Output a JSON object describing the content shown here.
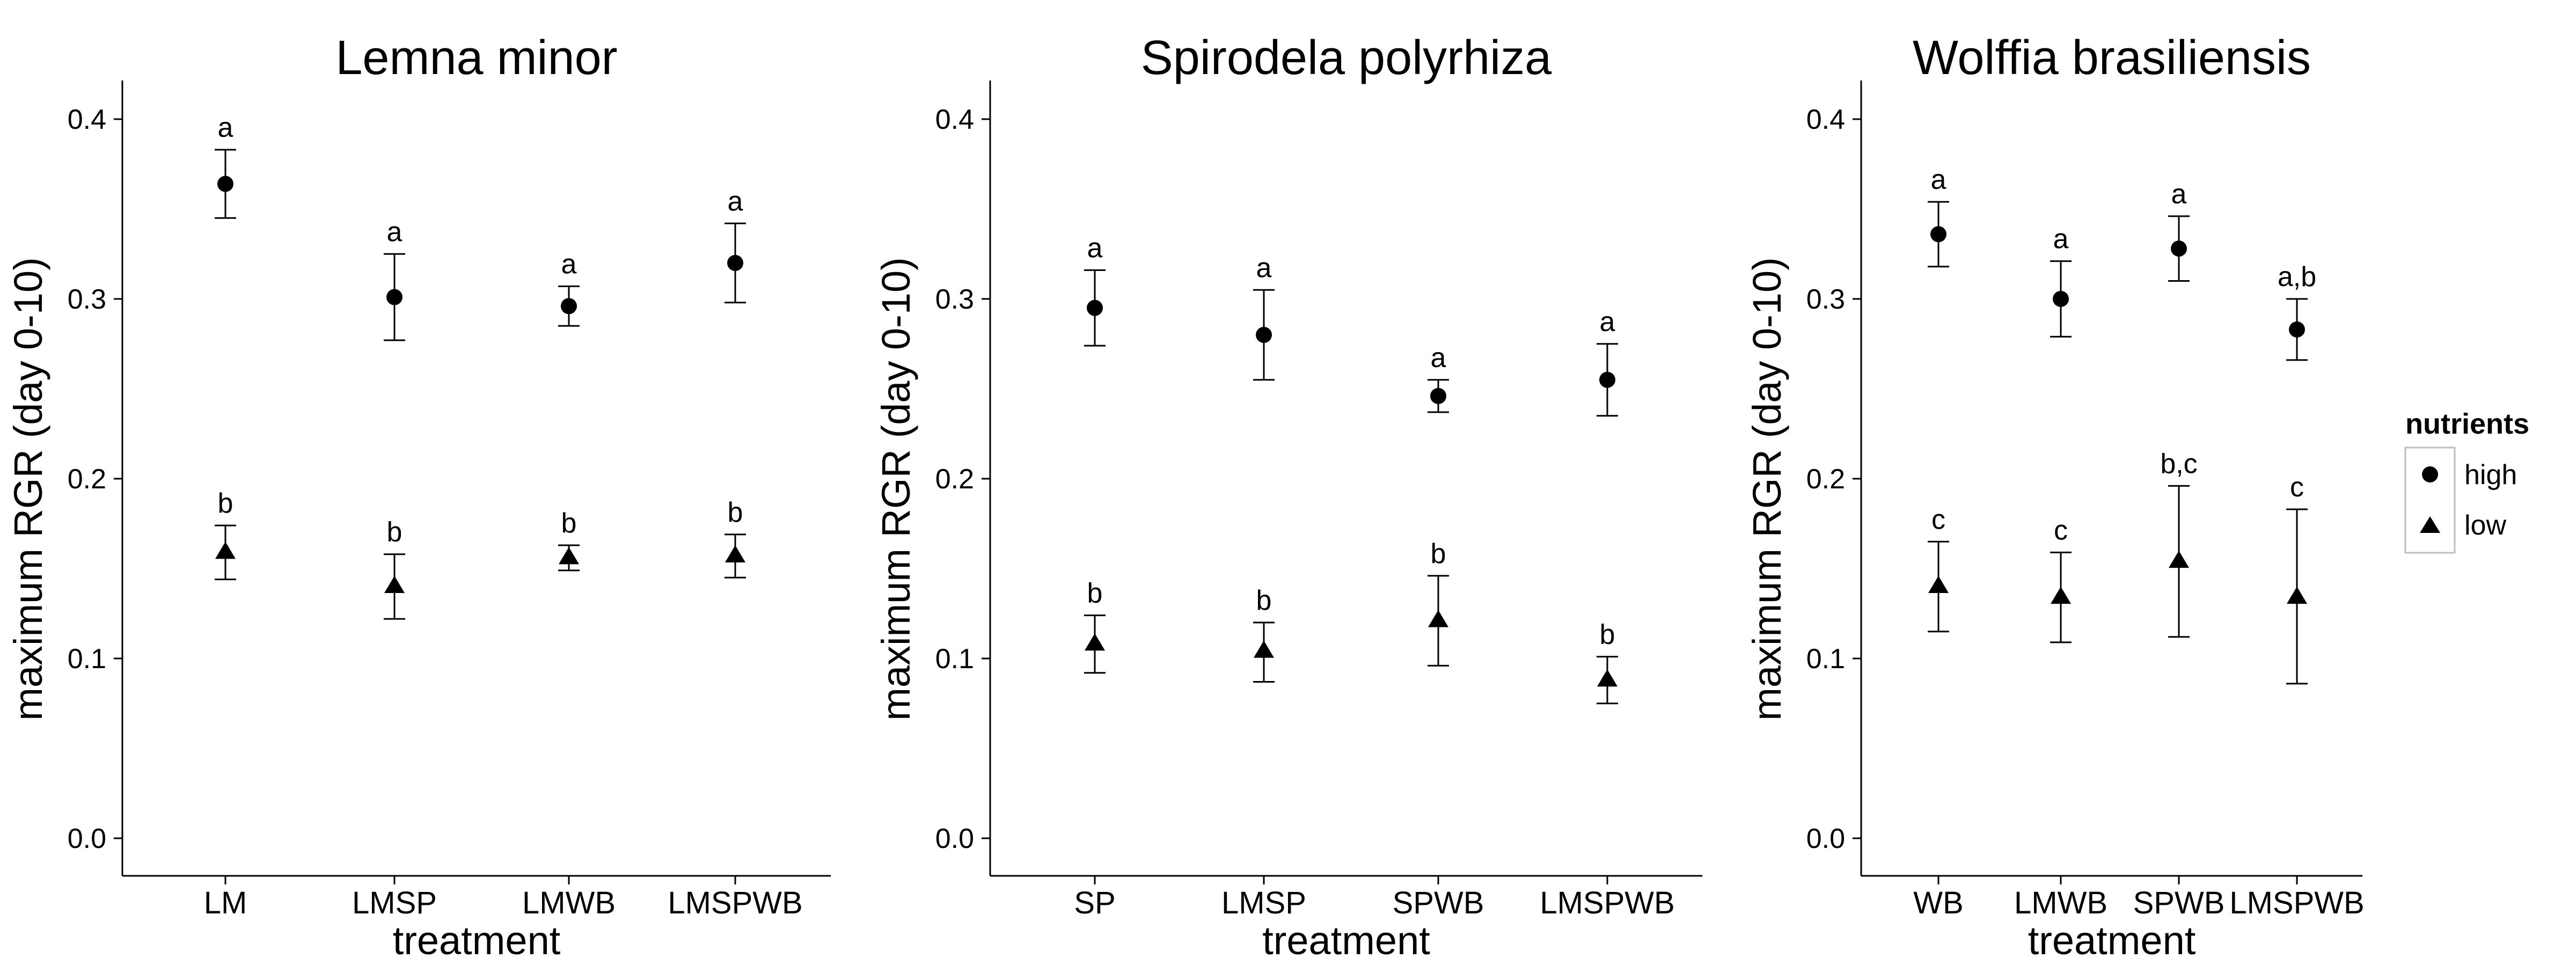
{
  "chart_data": [
    {
      "type": "scatter",
      "title": "Lemna minor",
      "xlabel": "treatment",
      "ylabel": "maximum RGR (day 0-10)",
      "ylim": [
        0,
        0.42
      ],
      "yticks": [
        "0.0",
        "0.1",
        "0.2",
        "0.3",
        "0.4"
      ],
      "categories": [
        "LM",
        "LMSP",
        "LMWB",
        "LMSPWB"
      ],
      "series": [
        {
          "name": "high",
          "marker": "circle",
          "values": [
            0.364,
            0.301,
            0.296,
            0.32
          ],
          "lower": [
            0.345,
            0.277,
            0.285,
            0.298
          ],
          "upper": [
            0.383,
            0.325,
            0.307,
            0.342
          ],
          "letters": [
            "a",
            "a",
            "a",
            "a"
          ]
        },
        {
          "name": "low",
          "marker": "triangle",
          "values": [
            0.159,
            0.14,
            0.156,
            0.157
          ],
          "lower": [
            0.144,
            0.122,
            0.149,
            0.145
          ],
          "upper": [
            0.174,
            0.158,
            0.163,
            0.169
          ],
          "letters": [
            "b",
            "b",
            "b",
            "b"
          ]
        }
      ]
    },
    {
      "type": "scatter",
      "title": "Spirodela polyrhiza",
      "xlabel": "treatment",
      "ylabel": "maximum RGR (day 0-10)",
      "ylim": [
        0,
        0.42
      ],
      "yticks": [
        "0.0",
        "0.1",
        "0.2",
        "0.3",
        "0.4"
      ],
      "categories": [
        "SP",
        "LMSP",
        "SPWB",
        "LMSPWB"
      ],
      "series": [
        {
          "name": "high",
          "marker": "circle",
          "values": [
            0.295,
            0.28,
            0.246,
            0.255
          ],
          "lower": [
            0.274,
            0.255,
            0.237,
            0.235
          ],
          "upper": [
            0.316,
            0.305,
            0.255,
            0.275
          ],
          "letters": [
            "a",
            "a",
            "a",
            "a"
          ]
        },
        {
          "name": "low",
          "marker": "triangle",
          "values": [
            0.108,
            0.104,
            0.121,
            0.088
          ],
          "lower": [
            0.092,
            0.087,
            0.096,
            0.075
          ],
          "upper": [
            0.124,
            0.12,
            0.146,
            0.101
          ],
          "letters": [
            "b",
            "b",
            "b",
            "b"
          ]
        }
      ]
    },
    {
      "type": "scatter",
      "title": "Wolffia brasiliensis",
      "xlabel": "treatment",
      "ylabel": "maximum RGR (day 0-10)",
      "ylim": [
        0,
        0.42
      ],
      "yticks": [
        "0.0",
        "0.1",
        "0.2",
        "0.3",
        "0.4"
      ],
      "categories": [
        "WB",
        "LMWB",
        "SPWB",
        "LMSPWB"
      ],
      "series": [
        {
          "name": "high",
          "marker": "circle",
          "values": [
            0.336,
            0.3,
            0.328,
            0.283
          ],
          "lower": [
            0.318,
            0.279,
            0.31,
            0.266
          ],
          "upper": [
            0.354,
            0.321,
            0.346,
            0.3
          ],
          "letters": [
            "a",
            "a",
            "a",
            "a,b"
          ]
        },
        {
          "name": "low",
          "marker": "triangle",
          "values": [
            0.14,
            0.134,
            0.154,
            0.134
          ],
          "lower": [
            0.115,
            0.109,
            0.112,
            0.086
          ],
          "upper": [
            0.165,
            0.159,
            0.196,
            0.183
          ],
          "letters": [
            "c",
            "c",
            "b,c",
            "c"
          ]
        }
      ]
    }
  ],
  "legend": {
    "title": "nutrients",
    "position": "right",
    "items": [
      {
        "label": "high",
        "marker": "circle"
      },
      {
        "label": "low",
        "marker": "triangle"
      }
    ]
  },
  "style": {
    "ink": "#000000",
    "legend_border": "#bfbfbf",
    "background": "#ffffff"
  }
}
